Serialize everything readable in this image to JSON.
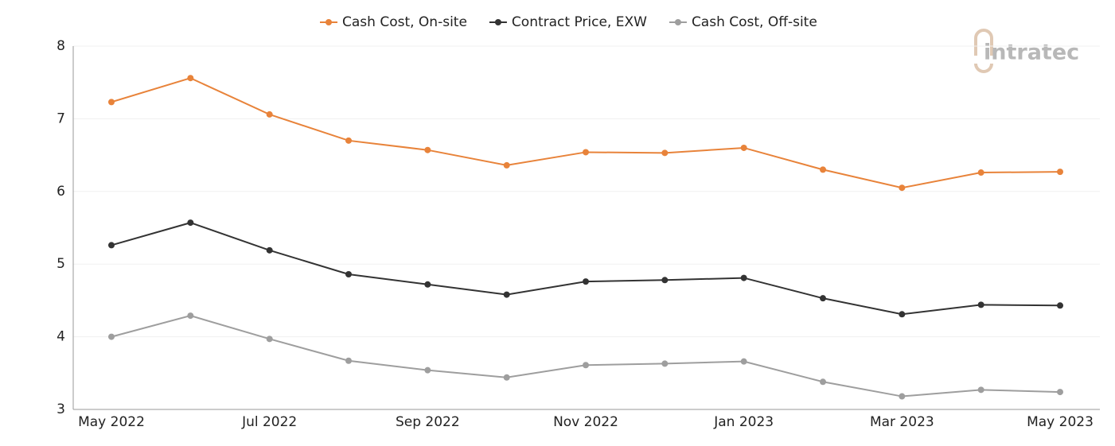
{
  "chart_data": {
    "type": "line",
    "categories": [
      "May 2022",
      null,
      "Jul 2022",
      null,
      "Sep 2022",
      null,
      "Nov 2022",
      null,
      "Jan 2023",
      null,
      "Mar 2023",
      null,
      "May 2023"
    ],
    "series": [
      {
        "name": "Cash Cost, On-site",
        "color": "#e8833a",
        "values": [
          7.23,
          7.56,
          7.06,
          6.7,
          6.57,
          6.36,
          6.54,
          6.53,
          6.6,
          6.3,
          6.05,
          6.26,
          6.27
        ]
      },
      {
        "name": "Contract Price, EXW",
        "color": "#333333",
        "values": [
          5.26,
          5.57,
          5.19,
          4.86,
          4.72,
          4.58,
          4.76,
          4.78,
          4.81,
          4.53,
          4.31,
          4.44,
          4.43
        ]
      },
      {
        "name": "Cash Cost, Off-site",
        "color": "#9e9e9e",
        "values": [
          4.0,
          4.29,
          3.97,
          3.67,
          3.54,
          3.44,
          3.61,
          3.63,
          3.66,
          3.38,
          3.18,
          3.27,
          3.24
        ]
      }
    ],
    "ylim": [
      3,
      8
    ],
    "yticks": [
      3,
      4,
      5,
      6,
      7,
      8
    ],
    "grid": true,
    "legend": "top",
    "logo": "intratec"
  }
}
